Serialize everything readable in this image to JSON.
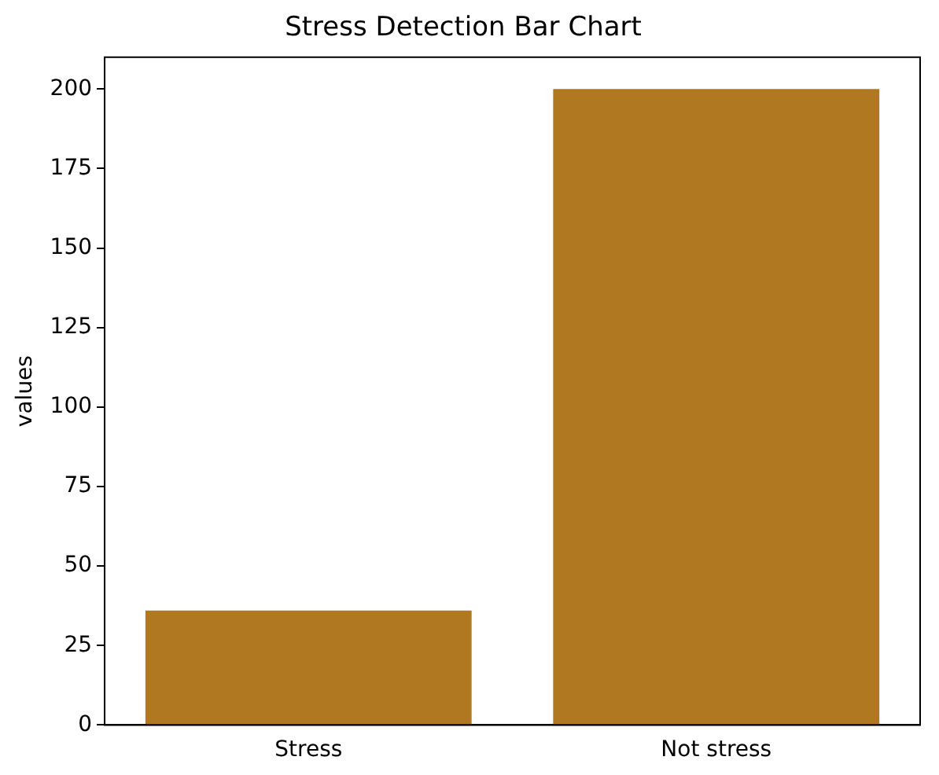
{
  "chart_data": {
    "type": "bar",
    "title": "Stress Detection Bar Chart",
    "ylabel": "values",
    "categories": [
      "Stress",
      "Not stress"
    ],
    "values": [
      36,
      200
    ],
    "color": "#b07820",
    "ylim": [
      0,
      210
    ],
    "yticks": [
      0,
      25,
      50,
      75,
      100,
      125,
      150,
      175,
      200
    ],
    "grid": false,
    "legend": false
  }
}
